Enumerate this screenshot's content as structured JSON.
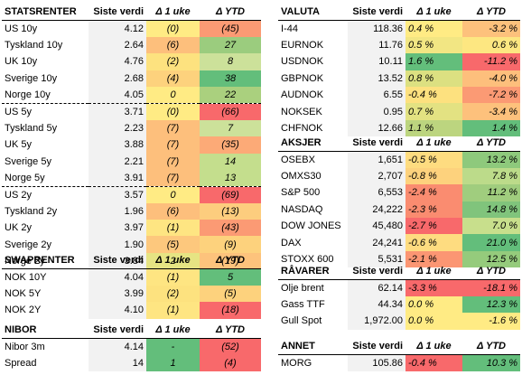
{
  "col_headers": {
    "value": "Siste verdi",
    "week": "Δ 1 uke",
    "ytd": "Δ YTD"
  },
  "colors": {
    "green_strong": "#63be7b",
    "green": "#9bcc7e",
    "green_light": "#cce19a",
    "neutral": "#ffeb84",
    "orange": "#fdbf7c",
    "red_light": "#fb9a74",
    "red": "#f8696b",
    "value_bg": "#f2f2f2"
  },
  "statsrenter": {
    "title": "STATSRENTER",
    "rows": [
      {
        "name": "US 10y",
        "value": "4.12",
        "week": "(0)",
        "ytd": "(45)",
        "wc": "#ffeb84",
        "yc": "#fb9a74"
      },
      {
        "name": "Tyskland 10y",
        "value": "2.64",
        "week": "(6)",
        "ytd": "27",
        "wc": "#fdbf7c",
        "yc": "#9bcc7e"
      },
      {
        "name": "UK 10y",
        "value": "4.76",
        "week": "(2)",
        "ytd": "8",
        "wc": "#fde27f",
        "yc": "#cce19a"
      },
      {
        "name": "Sverige 10y",
        "value": "2.68",
        "week": "(4)",
        "ytd": "38",
        "wc": "#fdd27d",
        "yc": "#63be7b"
      },
      {
        "name": "Norge 10y",
        "value": "4.05",
        "week": "0",
        "ytd": "22",
        "wc": "#ffeb84",
        "yc": "#aad07e"
      },
      {
        "name": "US 5y",
        "value": "3.71",
        "week": "(0)",
        "ytd": "(66)",
        "wc": "#ffeb84",
        "yc": "#f8696b"
      },
      {
        "name": "Tyskland 5y",
        "value": "2.23",
        "week": "(7)",
        "ytd": "7",
        "wc": "#fdbf7c",
        "yc": "#cce19a"
      },
      {
        "name": "UK 5y",
        "value": "3.88",
        "week": "(7)",
        "ytd": "(35)",
        "wc": "#fdbf7c",
        "yc": "#fcaa77"
      },
      {
        "name": "Sverige 5y",
        "value": "2.21",
        "week": "(7)",
        "ytd": "14",
        "wc": "#fdbf7c",
        "yc": "#c4de8d"
      },
      {
        "name": "Norge 5y",
        "value": "3.91",
        "week": "(7)",
        "ytd": "13",
        "wc": "#fdbf7c",
        "yc": "#c4de8d"
      },
      {
        "name": "US 2y",
        "value": "3.57",
        "week": "0",
        "ytd": "(69)",
        "wc": "#ffeb84",
        "yc": "#f8696b"
      },
      {
        "name": "Tyskland 2y",
        "value": "1.96",
        "week": "(6)",
        "ytd": "(13)",
        "wc": "#fdbf7c",
        "yc": "#fdcd7e"
      },
      {
        "name": "UK 2y",
        "value": "3.97",
        "week": "(1)",
        "ytd": "(43)",
        "wc": "#fee582",
        "yc": "#fb9a74"
      },
      {
        "name": "Sverige 2y",
        "value": "1.90",
        "week": "(5)",
        "ytd": "(9)",
        "wc": "#fdc87d",
        "yc": "#fdd27d"
      },
      {
        "name": "Norge 2y",
        "value": "3.84",
        "week": "2",
        "ytd": "(19)",
        "wc": "#e6e483",
        "yc": "#fdc37c"
      }
    ]
  },
  "swaprenter": {
    "title": "SWAPRENTER",
    "rows": [
      {
        "name": "NOK 10Y",
        "value": "4.04",
        "week": "(1)",
        "ytd": "5",
        "wc": "#fee582",
        "yc": "#63be7b"
      },
      {
        "name": "NOK 5Y",
        "value": "3.99",
        "week": "(2)",
        "ytd": "(5)",
        "wc": "#fde27f",
        "yc": "#fdd27d"
      },
      {
        "name": "NOK 2Y",
        "value": "4.10",
        "week": "(1)",
        "ytd": "(18)",
        "wc": "#fee582",
        "yc": "#f8696b"
      }
    ]
  },
  "nibor": {
    "title": "NIBOR",
    "rows": [
      {
        "name": "Nibor 3m",
        "value": "4.14",
        "week": "-",
        "ytd": "(52)",
        "wc": "#63be7b",
        "yc": "#f8696b"
      },
      {
        "name": "Spread",
        "value": "14",
        "week": "1",
        "ytd": "(4)",
        "wc": "#63be7b",
        "yc": "#f8696b"
      }
    ]
  },
  "valuta": {
    "title": "VALUTA",
    "rows": [
      {
        "name": "I-44",
        "value": "118.36",
        "week": "0.4 %",
        "ytd": "-3.2 %",
        "wc": "#ffeb84",
        "yc": "#fdc17c"
      },
      {
        "name": "EURNOK",
        "value": "11.76",
        "week": "0.5 %",
        "ytd": "0.6 %",
        "wc": "#f2e683",
        "yc": "#fde781"
      },
      {
        "name": "USDNOK",
        "value": "10.11",
        "week": "1.6 %",
        "ytd": "-11.2 %",
        "wc": "#63be7b",
        "yc": "#f8696b"
      },
      {
        "name": "GBPNOK",
        "value": "13.52",
        "week": "0.8 %",
        "ytd": "-4.0 %",
        "wc": "#dce081",
        "yc": "#fdbf7c"
      },
      {
        "name": "AUDNOK",
        "value": "6.55",
        "week": "-0.4 %",
        "ytd": "-7.2 %",
        "wc": "#fde17f",
        "yc": "#fb9a74"
      },
      {
        "name": "NOKSEK",
        "value": "0.95",
        "week": "0.7 %",
        "ytd": "-3.4 %",
        "wc": "#e3e282",
        "yc": "#fdc17c"
      },
      {
        "name": "CHFNOK",
        "value": "12.66",
        "week": "1.1 %",
        "ytd": "1.4 %",
        "wc": "#bcd57f",
        "yc": "#63be7b"
      }
    ]
  },
  "aksjer": {
    "title": "AKSJER",
    "rows": [
      {
        "name": "OSEBX",
        "value": "1,651",
        "week": "-0.5 %",
        "ytd": "13.2 %",
        "wc": "#fedc80",
        "yc": "#8ec97c"
      },
      {
        "name": "OMXS30",
        "value": "2,707",
        "week": "-0.8 %",
        "ytd": "7.8 %",
        "wc": "#fdd27d",
        "yc": "#bcdb8a"
      },
      {
        "name": "S&P 500",
        "value": "6,553",
        "week": "-2.4 %",
        "ytd": "11.2 %",
        "wc": "#fa8c70",
        "yc": "#a0cd7e"
      },
      {
        "name": "NASDAQ",
        "value": "24,222",
        "week": "-2.3 %",
        "ytd": "14.8 %",
        "wc": "#fa8c70",
        "yc": "#80c47c"
      },
      {
        "name": "DOW JONES",
        "value": "45,480",
        "week": "-2.7 %",
        "ytd": "7.0 %",
        "wc": "#f8696b",
        "yc": "#c8df8c"
      },
      {
        "name": "DAX",
        "value": "24,241",
        "week": "-0.6 %",
        "ytd": "21.0 %",
        "wc": "#fedc80",
        "yc": "#63be7b"
      },
      {
        "name": "STOXX 600",
        "value": "5,531",
        "week": "-2.1 %",
        "ytd": "12.5 %",
        "wc": "#fb9673",
        "yc": "#95cb7c"
      }
    ]
  },
  "ravarer": {
    "title": "RÅVARER",
    "rows": [
      {
        "name": "Olje brent",
        "value": "62.14",
        "week": "-3.3 %",
        "ytd": "-18.1 %",
        "wc": "#f8696b",
        "yc": "#f8696b"
      },
      {
        "name": "Gass TTF",
        "value": "44.34",
        "week": "0.0 %",
        "ytd": "12.3 %",
        "wc": "#ffeb84",
        "yc": "#63be7b"
      },
      {
        "name": "Gull Spot",
        "value": "1,972.00",
        "week": "0.0 %",
        "ytd": "-1.6 %",
        "wc": "#ffeb84",
        "yc": "#ffeb84"
      }
    ]
  },
  "annet": {
    "title": "ANNET",
    "rows": [
      {
        "name": "MORG",
        "value": "105.86",
        "week": "-0.4 %",
        "ytd": "10.3 %",
        "wc": "#f8696b",
        "yc": "#63be7b"
      }
    ]
  }
}
